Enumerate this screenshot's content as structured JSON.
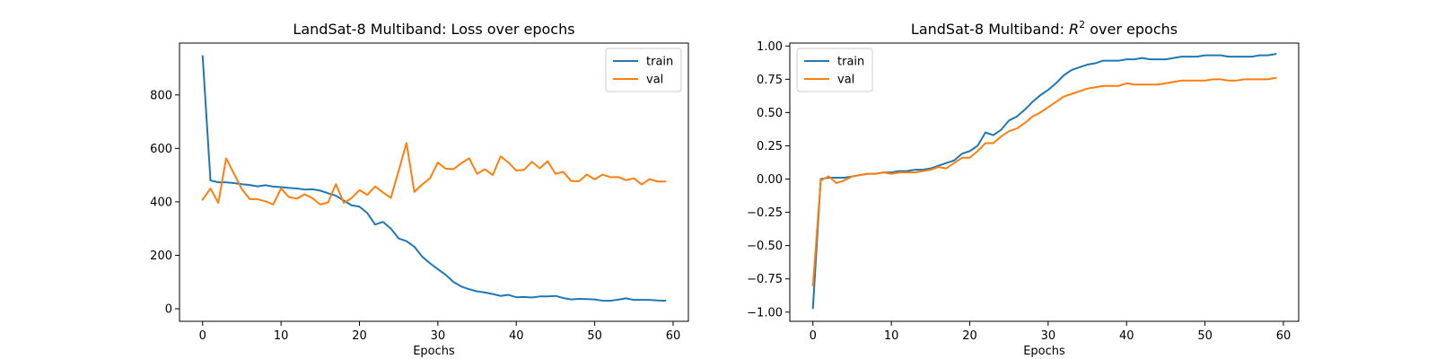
{
  "chart_data": [
    {
      "type": "line",
      "title": "LandSat-8 Multiband: Loss over epochs",
      "title_parts": [
        {
          "text": "LandSat-8 Multiband: Loss over epochs",
          "italic": false
        }
      ],
      "xlabel": "Epochs",
      "ylabel": "",
      "xlim": [
        -2.95,
        61.95
      ],
      "ylim": [
        -47,
        994
      ],
      "xticks": [
        0,
        10,
        20,
        30,
        40,
        50,
        60
      ],
      "yticks": [
        0,
        200,
        400,
        600,
        800
      ],
      "legend": "top-right",
      "grid": false,
      "series": [
        {
          "name": "train",
          "color": "#1f77b4",
          "x": [
            0,
            1,
            2,
            3,
            4,
            5,
            6,
            7,
            8,
            9,
            10,
            11,
            12,
            13,
            14,
            15,
            16,
            17,
            18,
            19,
            20,
            21,
            22,
            23,
            24,
            25,
            26,
            27,
            28,
            29,
            30,
            31,
            32,
            33,
            34,
            35,
            36,
            37,
            38,
            39,
            40,
            41,
            42,
            43,
            44,
            45,
            46,
            47,
            48,
            49,
            50,
            51,
            52,
            53,
            54,
            55,
            56,
            57,
            58,
            59
          ],
          "y": [
            945,
            480,
            473,
            473,
            470,
            466,
            463,
            458,
            462,
            457,
            455,
            452,
            450,
            446,
            447,
            442,
            432,
            423,
            405,
            387,
            382,
            358,
            315,
            325,
            300,
            263,
            253,
            232,
            195,
            170,
            148,
            127,
            100,
            83,
            73,
            65,
            61,
            55,
            48,
            52,
            43,
            44,
            42,
            46,
            46,
            48,
            40,
            35,
            37,
            36,
            35,
            30,
            30,
            34,
            39,
            33,
            33,
            33,
            31,
            30
          ]
        },
        {
          "name": "val",
          "color": "#ff7f0e",
          "x": [
            0,
            1,
            2,
            3,
            4,
            5,
            6,
            7,
            8,
            9,
            10,
            11,
            12,
            13,
            14,
            15,
            16,
            17,
            18,
            19,
            20,
            21,
            22,
            23,
            24,
            25,
            26,
            27,
            28,
            29,
            30,
            31,
            32,
            33,
            34,
            35,
            36,
            37,
            38,
            39,
            40,
            41,
            42,
            43,
            44,
            45,
            46,
            47,
            48,
            49,
            50,
            51,
            52,
            53,
            54,
            55,
            56,
            57,
            58,
            59
          ],
          "y": [
            408,
            450,
            396,
            563,
            505,
            448,
            410,
            410,
            402,
            390,
            450,
            418,
            412,
            428,
            414,
            390,
            398,
            466,
            396,
            414,
            444,
            426,
            458,
            435,
            415,
            516,
            620,
            437,
            465,
            488,
            547,
            524,
            522,
            545,
            563,
            505,
            522,
            500,
            570,
            547,
            517,
            520,
            550,
            525,
            552,
            505,
            512,
            478,
            477,
            502,
            484,
            502,
            492,
            493,
            481,
            488,
            465,
            485,
            476,
            476
          ]
        }
      ]
    },
    {
      "type": "line",
      "title": "LandSat-8 Multiband: R2 over epochs",
      "title_parts": [
        {
          "text": "LandSat-8 Multiband: ",
          "italic": false
        },
        {
          "text": "R",
          "italic": true
        },
        {
          "text": "2",
          "italic": false,
          "superscript": true
        },
        {
          "text": " over epochs",
          "italic": false
        }
      ],
      "xlabel": "Epochs",
      "ylabel": "",
      "xlim": [
        -2.95,
        61.95
      ],
      "ylim": [
        -1.069,
        1.022
      ],
      "xticks": [
        0,
        10,
        20,
        30,
        40,
        50,
        60
      ],
      "yticks": [
        -1.0,
        -0.75,
        -0.5,
        -0.25,
        0.0,
        0.25,
        0.5,
        0.75,
        1.0
      ],
      "ytick_labels": [
        "−1.00",
        "−0.75",
        "−0.50",
        "−0.25",
        "0.00",
        "0.25",
        "0.50",
        "0.75",
        "1.00"
      ],
      "legend": "top-left",
      "grid": false,
      "series": [
        {
          "name": "train",
          "color": "#1f77b4",
          "x": [
            0,
            1,
            2,
            3,
            4,
            5,
            6,
            7,
            8,
            9,
            10,
            11,
            12,
            13,
            14,
            15,
            16,
            17,
            18,
            19,
            20,
            21,
            22,
            23,
            24,
            25,
            26,
            27,
            28,
            29,
            30,
            31,
            32,
            33,
            34,
            35,
            36,
            37,
            38,
            39,
            40,
            41,
            42,
            43,
            44,
            45,
            46,
            47,
            48,
            49,
            50,
            51,
            52,
            53,
            54,
            55,
            56,
            57,
            58,
            59
          ],
          "y": [
            -0.97,
            0.0,
            0.01,
            0.01,
            0.01,
            0.02,
            0.03,
            0.04,
            0.04,
            0.05,
            0.05,
            0.06,
            0.06,
            0.07,
            0.07,
            0.08,
            0.1,
            0.12,
            0.14,
            0.19,
            0.21,
            0.25,
            0.35,
            0.33,
            0.37,
            0.44,
            0.47,
            0.52,
            0.58,
            0.63,
            0.67,
            0.72,
            0.78,
            0.82,
            0.84,
            0.86,
            0.87,
            0.89,
            0.89,
            0.89,
            0.9,
            0.9,
            0.91,
            0.9,
            0.9,
            0.9,
            0.91,
            0.92,
            0.92,
            0.92,
            0.93,
            0.93,
            0.93,
            0.92,
            0.92,
            0.92,
            0.92,
            0.93,
            0.93,
            0.94
          ]
        },
        {
          "name": "val",
          "color": "#ff7f0e",
          "x": [
            0,
            1,
            2,
            3,
            4,
            5,
            6,
            7,
            8,
            9,
            10,
            11,
            12,
            13,
            14,
            15,
            16,
            17,
            18,
            19,
            20,
            21,
            22,
            23,
            24,
            25,
            26,
            27,
            28,
            29,
            30,
            31,
            32,
            33,
            34,
            35,
            36,
            37,
            38,
            39,
            40,
            41,
            42,
            43,
            44,
            45,
            46,
            47,
            48,
            49,
            50,
            51,
            52,
            53,
            54,
            55,
            56,
            57,
            58,
            59
          ],
          "y": [
            -0.8,
            -0.01,
            0.02,
            -0.03,
            -0.01,
            0.02,
            0.03,
            0.04,
            0.04,
            0.05,
            0.04,
            0.05,
            0.05,
            0.05,
            0.06,
            0.07,
            0.09,
            0.08,
            0.12,
            0.16,
            0.16,
            0.21,
            0.27,
            0.27,
            0.32,
            0.36,
            0.38,
            0.42,
            0.47,
            0.5,
            0.54,
            0.58,
            0.62,
            0.64,
            0.66,
            0.68,
            0.69,
            0.7,
            0.7,
            0.7,
            0.72,
            0.71,
            0.71,
            0.71,
            0.71,
            0.72,
            0.73,
            0.74,
            0.74,
            0.74,
            0.74,
            0.75,
            0.75,
            0.74,
            0.74,
            0.75,
            0.75,
            0.75,
            0.75,
            0.76
          ]
        }
      ]
    }
  ]
}
